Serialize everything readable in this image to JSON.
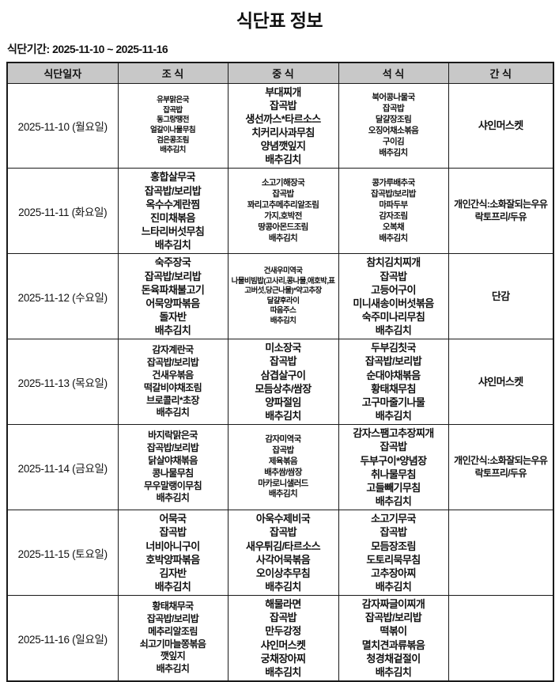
{
  "page": {
    "title": "식단표 정보",
    "period": "식단기간: 2025-11-10 ~ 2025-11-16"
  },
  "colors": {
    "header_bg": "#c8c8c8",
    "border": "#1a1a1a",
    "text": "#111111"
  },
  "table": {
    "headers": [
      "식단일자",
      "조 식",
      "중 식",
      "석 식",
      "간 식"
    ],
    "meal_cell_names": [
      "breakfast-cell",
      "lunch-cell",
      "dinner-cell",
      "snack-cell"
    ],
    "rows": [
      {
        "date": "2025-11-10 (월요일)",
        "meals": [
          {
            "size": "xs",
            "items": [
              "유부맑은국",
              "잡곡밥",
              "동그랑땡전",
              "얼갈이나물무침",
              "검은콩조림",
              "배추김치"
            ]
          },
          {
            "size": "l",
            "items": [
              "부대찌개",
              "잡곡밥",
              "생선까스*타르소스",
              "치커리사과무침",
              "양념깻잎지",
              "배추김치"
            ]
          },
          {
            "size": "s",
            "items": [
              "북어콩나물국",
              "잡곡밥",
              "달걀장조림",
              "오징어채소볶음",
              "구이김",
              "배추김치"
            ]
          },
          {
            "size": "l",
            "items": [
              "샤인머스켓"
            ]
          }
        ]
      },
      {
        "date": "2025-11-11 (화요일)",
        "meals": [
          {
            "size": "l",
            "items": [
              "홍합살무국",
              "잡곡밥/보리밥",
              "옥수수계란찜",
              "진미채볶음",
              "느타리버섯무침",
              "배추김치"
            ]
          },
          {
            "size": "s",
            "items": [
              "소고기해장국",
              "잡곡밥",
              "꽈리고추메추리알조림",
              "가지,호박전",
              "땅콩아몬드조림",
              "배추김치"
            ]
          },
          {
            "size": "s",
            "items": [
              "콩가루배추국",
              "잡곡밥/보리밥",
              "마파두부",
              "감자조림",
              "오복채",
              "배추김치"
            ]
          },
          {
            "size": "m",
            "items": [
              "개인간식:소화잘되는우유",
              "락토프리/두유"
            ]
          }
        ]
      },
      {
        "date": "2025-11-12 (수요일)",
        "meals": [
          {
            "size": "l",
            "items": [
              "숙주장국",
              "잡곡밥/보리밥",
              "돈육파채불고기",
              "어묵양파볶음",
              "돌자반",
              "배추김치"
            ]
          },
          {
            "size": "xs",
            "items": [
              "건새우미역국",
              "나물비빔밥(고사리,콩나물,애호박,표고버섯,당근나물)*약고추장",
              "달걀후라이",
              "따음주스",
              "배추김치"
            ]
          },
          {
            "size": "l",
            "items": [
              "참치김치찌개",
              "잡곡밥",
              "고등어구이",
              "미니새송이버섯볶음",
              "숙주미나리무침",
              "배추김치"
            ]
          },
          {
            "size": "l",
            "items": [
              "단감"
            ]
          }
        ]
      },
      {
        "date": "2025-11-13 (목요일)",
        "meals": [
          {
            "size": "m",
            "items": [
              "감자계란국",
              "잡곡밥/보리밥",
              "건새우볶음",
              "떡갈비야채조림",
              "브로콜리*초장",
              "배추김치"
            ]
          },
          {
            "size": "l",
            "items": [
              "미소장국",
              "잡곡밥",
              "삼겹살구이",
              "모듬상추/쌈장",
              "양파절임",
              "배추김치"
            ]
          },
          {
            "size": "l",
            "items": [
              "두부김칫국",
              "잡곡밥/보리밥",
              "순대야채볶음",
              "황태채무침",
              "고구마줄기나물",
              "배추김치"
            ]
          },
          {
            "size": "l",
            "items": [
              "샤인머스켓"
            ]
          }
        ]
      },
      {
        "date": "2025-11-14 (금요일)",
        "meals": [
          {
            "size": "m",
            "items": [
              "바지락맑은국",
              "잡곡밥/보리밥",
              "닭살야채볶음",
              "콩나물무침",
              "무우말랭이무침",
              "배추김치"
            ]
          },
          {
            "size": "s",
            "items": [
              "감자미역국",
              "잡곡밥",
              "제육볶음",
              "배추쌈/쌈장",
              "마카로니샐러드",
              "배추김치"
            ]
          },
          {
            "size": "l",
            "items": [
              "감자스팸고추장찌개",
              "잡곡밥",
              "두부구이*양념장",
              "취나물무침",
              "고들빼기무침",
              "배추김치"
            ]
          },
          {
            "size": "m",
            "items": [
              "개인간식:소화잘되는우유",
              "락토프리/두유"
            ]
          }
        ]
      },
      {
        "date": "2025-11-15 (토요일)",
        "meals": [
          {
            "size": "l",
            "items": [
              "어묵국",
              "잡곡밥",
              "너비아니구이",
              "호박양파볶음",
              "김자반",
              "배추김치"
            ]
          },
          {
            "size": "l",
            "items": [
              "아욱수제비국",
              "잡곡밥",
              "새우튀김/타르소스",
              "사각어묵볶음",
              "오이상추무침",
              "배추김치"
            ]
          },
          {
            "size": "l",
            "items": [
              "소고기무국",
              "잡곡밥",
              "모듬장조림",
              "도토리묵무침",
              "고추장아찌",
              "배추김치"
            ]
          },
          {
            "size": "l",
            "items": []
          }
        ]
      },
      {
        "date": "2025-11-16 (일요일)",
        "meals": [
          {
            "size": "m",
            "items": [
              "황태채무국",
              "잡곡밥/보리밥",
              "메추리알조림",
              "쇠고기마늘쫑볶음",
              "깻잎지",
              "배추김치"
            ]
          },
          {
            "size": "l",
            "items": [
              "해물라면",
              "잡곡밥",
              "만두강정",
              "샤인머스켓",
              "궁채장아찌",
              "배추김치"
            ]
          },
          {
            "size": "l",
            "items": [
              "감자짜글이찌개",
              "잡곡밥/보리밥",
              "떡볶이",
              "멸치견과류볶음",
              "청경채겉절이",
              "배추김치"
            ]
          },
          {
            "size": "l",
            "items": []
          }
        ]
      }
    ]
  }
}
